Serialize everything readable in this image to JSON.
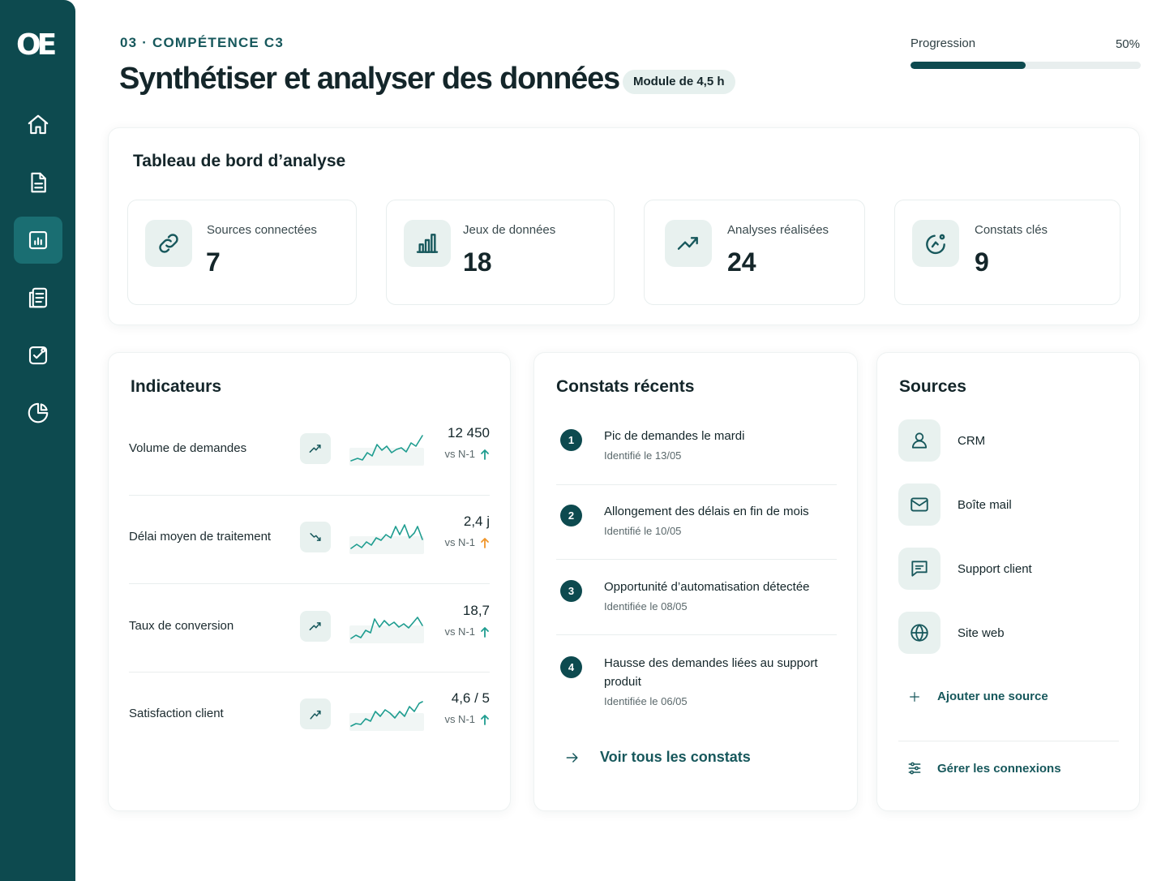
{
  "sidebar": {
    "logo": "OE",
    "items": [
      {
        "icon": "home-icon"
      },
      {
        "icon": "document-icon"
      },
      {
        "icon": "chart-icon",
        "active": true
      },
      {
        "icon": "report-icon"
      },
      {
        "icon": "checklist-icon"
      },
      {
        "icon": "pie-chart-icon"
      }
    ]
  },
  "header": {
    "eyebrow": "03 · COMPÉTENCE C3",
    "title": "Synthétiser et analyser des données",
    "badge": "Module de 4,5 h",
    "progress_label": "Progression",
    "progress_value": "50%",
    "progress_fraction": 0.5
  },
  "dashboard": {
    "title": "Tableau de bord d’analyse",
    "stats": [
      {
        "label": "Sources connectées",
        "value": "7",
        "icon": "link-icon"
      },
      {
        "label": "Jeux de données",
        "value": "18",
        "icon": "bar-chart-icon"
      },
      {
        "label": "Analyses réalisées",
        "value": "24",
        "icon": "trend-up-icon"
      },
      {
        "label": "Constats clés",
        "value": "9",
        "icon": "insight-icon"
      }
    ]
  },
  "indicators": {
    "title": "Indicateurs",
    "items": [
      {
        "label": "Volume de demandes",
        "value": "12 450",
        "compare": "vs N-1",
        "trend": "up",
        "arrow_color": "#1f9d90"
      },
      {
        "label": "Délai moyen de traitement",
        "value": "2,4 j",
        "compare": "vs N-1",
        "trend": "down",
        "arrow_color": "#f0962a"
      },
      {
        "label": "Taux de conversion",
        "value": "18,7",
        "compare": "vs N-1",
        "trend": "up",
        "arrow_color": "#1f9d90"
      },
      {
        "label": "Satisfaction client",
        "value": "4,6 / 5",
        "compare": "vs N-1",
        "trend": "up",
        "arrow_color": "#1f9d90"
      }
    ]
  },
  "findings": {
    "title": "Constats récents",
    "items": [
      {
        "num": "1",
        "title": "Pic de demandes le mardi",
        "date": "Identifié le 13/05"
      },
      {
        "num": "2",
        "title": "Allongement des délais en fin de mois",
        "date": "Identifié le 10/05"
      },
      {
        "num": "3",
        "title": "Opportunité d’automatisation détectée",
        "date": "Identifiée le 08/05"
      },
      {
        "num": "4",
        "title": "Hausse des demandes liées au support produit",
        "date": "Identifiée le 06/05"
      }
    ],
    "link": "Voir tous les constats"
  },
  "sources": {
    "title": "Sources",
    "items": [
      {
        "label": "CRM",
        "icon": "user-icon"
      },
      {
        "label": "Boîte mail",
        "icon": "mail-icon"
      },
      {
        "label": "Support client",
        "icon": "chat-icon"
      },
      {
        "label": "Site web",
        "icon": "globe-icon"
      }
    ],
    "add": "Ajouter une source",
    "manage": "Gérer les connexions"
  },
  "colors": {
    "sidebar": "#0d4a4f",
    "accent": "#17585c",
    "sparkline": "#1f9d90",
    "warning_arrow": "#f0962a"
  }
}
